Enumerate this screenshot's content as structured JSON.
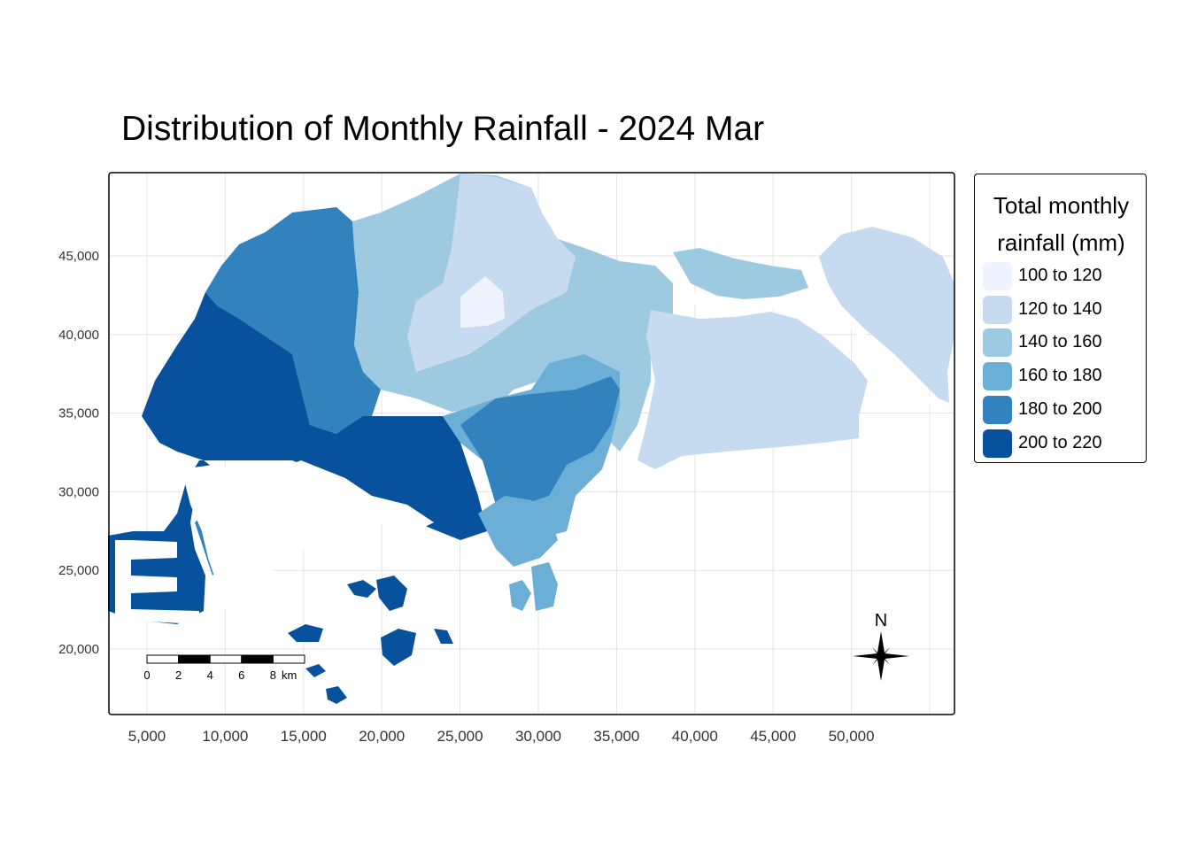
{
  "title": "Distribution of Monthly Rainfall - 2024 Mar",
  "legend": {
    "title_line1": "Total monthly",
    "title_line2": "rainfall (mm)",
    "classes": [
      {
        "label": "100 to 120",
        "color": "#eff3ff"
      },
      {
        "label": "120 to 140",
        "color": "#c6dbef"
      },
      {
        "label": "140 to 160",
        "color": "#9ecae1"
      },
      {
        "label": "160 to 180",
        "color": "#6baed6"
      },
      {
        "label": "180 to 200",
        "color": "#3182bd"
      },
      {
        "label": "200 to 220",
        "color": "#08519c"
      }
    ]
  },
  "axes": {
    "x_ticks": [
      "5,000",
      "10,000",
      "15,000",
      "20,000",
      "25,000",
      "30,000",
      "35,000",
      "40,000",
      "45,000",
      "50,000"
    ],
    "x_values": [
      5000,
      10000,
      15000,
      20000,
      25000,
      30000,
      35000,
      40000,
      45000,
      50000
    ],
    "y_ticks": [
      "45,000",
      "40,000",
      "35,000",
      "30,000",
      "25,000",
      "20,000"
    ],
    "y_values": [
      45000,
      40000,
      35000,
      30000,
      25000,
      20000
    ]
  },
  "scale_bar": {
    "labels": [
      "0",
      "2",
      "4",
      "6",
      "8"
    ],
    "unit": "km"
  },
  "north_arrow": {
    "label": "N"
  }
}
